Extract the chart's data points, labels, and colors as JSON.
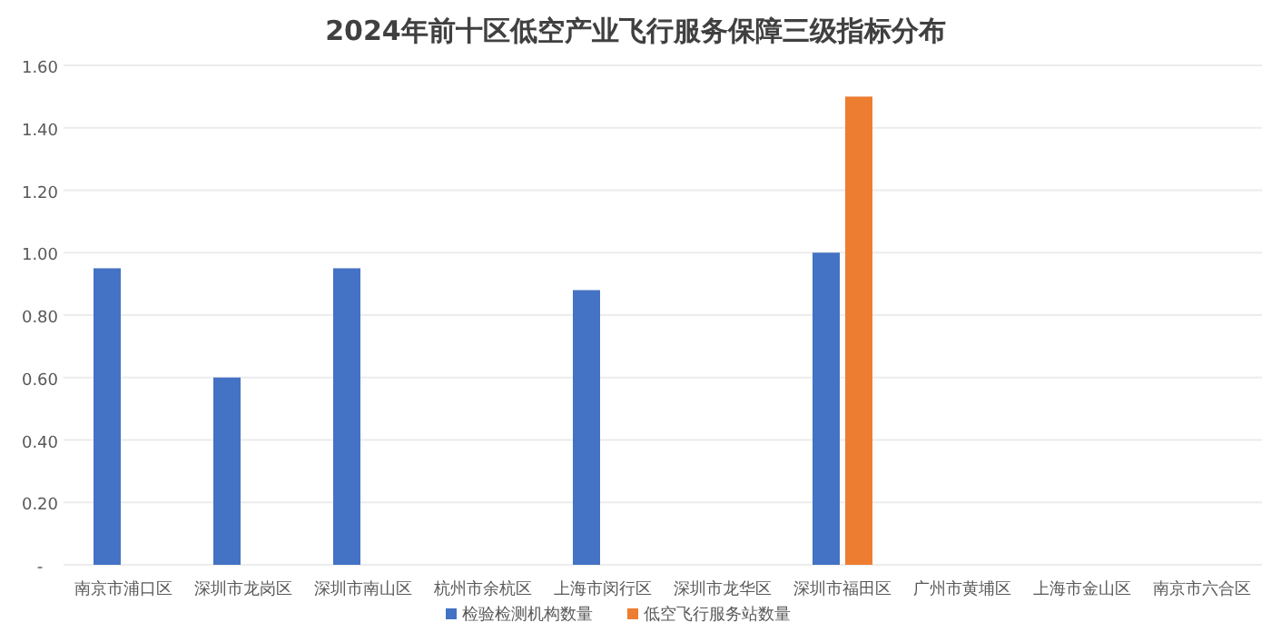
{
  "chart_data": {
    "type": "bar",
    "title": "2024年前十区低空产业飞行服务保障三级指标分布",
    "categories": [
      "南京市浦口区",
      "深圳市龙岗区",
      "深圳市南山区",
      "杭州市余杭区",
      "上海市闵行区",
      "深圳市龙华区",
      "深圳市福田区",
      "广州市黄埔区",
      "上海市金山区",
      "南京市六合区"
    ],
    "series": [
      {
        "name": "检验检测机构数量",
        "color": "#4472c4",
        "values": [
          0.95,
          0.6,
          0.95,
          0,
          0.88,
          0,
          1.0,
          0,
          0,
          0
        ]
      },
      {
        "name": "低空飞行服务站数量",
        "color": "#ed7d31",
        "values": [
          0,
          0,
          0,
          0,
          0,
          0,
          1.5,
          0,
          0,
          0
        ]
      }
    ],
    "ylim": [
      0,
      1.6
    ],
    "yticks": [
      {
        "value": 0,
        "label": "-"
      },
      {
        "value": 0.2,
        "label": "0.20"
      },
      {
        "value": 0.4,
        "label": "0.40"
      },
      {
        "value": 0.6,
        "label": "0.60"
      },
      {
        "value": 0.8,
        "label": "0.80"
      },
      {
        "value": 1.0,
        "label": "1.00"
      },
      {
        "value": 1.2,
        "label": "1.20"
      },
      {
        "value": 1.4,
        "label": "1.40"
      },
      {
        "value": 1.6,
        "label": "1.60"
      }
    ],
    "grid": "y",
    "legend": "bottom"
  }
}
